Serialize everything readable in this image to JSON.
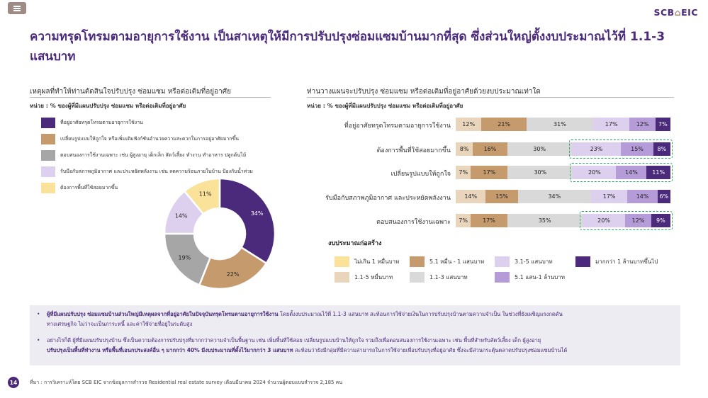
{
  "header": {
    "logo_text": "SCB",
    "logo_suffix": "EIC",
    "house_glyph": "⌂"
  },
  "title": "ความทรุดโทรมตามอายุการใช้งาน เป็นสาเหตุให้มีการปรับปรุงซ่อมแซมบ้านมากที่สุด ซึ่งส่วนใหญ่ตั้งงบประมาณไว้ที่ 1.1-3 แสนบาท",
  "left": {
    "title": "เหตุผลที่ทำให้ท่านตัดสินใจปรับปรุง ซ่อมแซม หรือต่อเติมที่อยู่อาศัย",
    "subtitle": "หน่วย : % ของผู้ที่มีแผนปรับปรุง ซ่อมแซม หรือต่อเติมที่อยู่อาศัย"
  },
  "right": {
    "title": "ท่านวางแผนจะปรับปรุง ซ่อมแซม หรือต่อเติมที่อยู่อาศัยด้วยงบประมาณเท่าใด",
    "subtitle": "หน่วย : % ของผู้ที่มีแผนปรับปรุง ซ่อมแซม หรือต่อเติมที่อยู่อาศัย",
    "legend_title": "งบประมาณก่อสร้าง"
  },
  "colors": {
    "accent": "#4b2a7c",
    "highlight_border": "#2ea46a",
    "note_bg": "#ececf2"
  },
  "chart_data": [
    {
      "type": "pie",
      "variant": "donut",
      "title": "",
      "categories": [
        "ที่อยู่อาศัยทรุดโทรมตามอายุการใช้งาน",
        "เปลี่ยนรูปแบบให้ถูกใจ หรือเพิ่มเติมฟังก์ชันอำนวยความสะดวกในการอยู่อาศัยมากขึ้น",
        "ตอบสนองการใช้งานเฉพาะ เช่น ผู้สูงอายุ เด็กเล็ก สัตว์เลี้ยง ทำงาน ทำอาหาร ปลูกต้นไม้",
        "รับมือกับสภาพภูมิอากาศ และประหยัดพลังงาน เช่น ลดความร้อนภายในบ้าน ป้องกันน้ำท่วม",
        "ต้องการพื้นที่ใช้สอยมากขึ้น"
      ],
      "values": [
        34,
        22,
        19,
        14,
        11
      ],
      "value_labels": [
        "34%",
        "22%",
        "19%",
        "14%",
        "11%"
      ],
      "colors": [
        "#4b2a7c",
        "#c59a6d",
        "#a6a6a6",
        "#ddd0ee",
        "#fbe29a"
      ],
      "legend": "left"
    },
    {
      "type": "bar",
      "orientation": "horizontal",
      "stacked": true,
      "title": "",
      "categories": [
        "ที่อยู่อาศัยทรุดโทรมตามอายุการใช้งาน",
        "ต้องการพื้นที่ใช้สอยมากขึ้น",
        "เปลี่ยนรูปแบบให้ถูกใจ",
        "รับมือกับสภาพภูมิอากาศ และประหยัดพลังงาน",
        "ตอบสนองการใช้งานเฉพาะ"
      ],
      "series": [
        {
          "name": "ไม่เกิน 1 หมื่นบาท",
          "values": [
            0,
            0,
            0,
            0,
            0
          ],
          "color": "#fbe29a"
        },
        {
          "name": "1.1-5 หมื่นบาท",
          "values": [
            12,
            8,
            7,
            14,
            7
          ],
          "color": "#e8d5bc"
        },
        {
          "name": "5.1 หมื่น - 1 แสนบาท",
          "values": [
            21,
            16,
            17,
            15,
            17
          ],
          "color": "#c59a6d"
        },
        {
          "name": "1.1-3 แสนบาท",
          "values": [
            31,
            30,
            30,
            34,
            35
          ],
          "color": "#d9d9d9"
        },
        {
          "name": "3.1-5 แสนบาท",
          "values": [
            17,
            23,
            20,
            17,
            20
          ],
          "color": "#ddd0ee"
        },
        {
          "name": "5.1 แสน-1 ล้านบาท",
          "values": [
            12,
            15,
            14,
            14,
            12
          ],
          "color": "#b59bd8"
        },
        {
          "name": "มากกว่า 1 ล้านบาทขึ้นไป",
          "values": [
            7,
            8,
            11,
            6,
            9
          ],
          "color": "#4b2a7c"
        }
      ],
      "highlighted_rows": [
        1,
        2,
        4
      ],
      "legend": "bottom"
    }
  ],
  "notes": [
    {
      "bold": "ผู้ที่มีแผนปรับปรุง ซ่อมแซมบ้านส่วนใหญ่มีเหตุผลจากที่อยู่อาศัยในปัจจุบันทรุดโทรมตามอายุการใช้งาน",
      "line1_rest": " โดยตั้งงบประมาณไว้ที่ 1.1-3 แสนบาท สะท้อนการใช้จ่ายเงินในการปรับปรุงบ้านตามความจำเป็น ในช่วงที่ยังเผชิญแรงกดดัน",
      "line2": "ทางเศรษฐกิจ ไม่ว่าจะเป็นภาระหนี้ และค่าใช้จ่ายที่อยู่ในระดับสูง"
    },
    {
      "line1": "อย่างไรก็ดี ผู้ที่มีแผนปรับปรุงบ้าน ซึ่งเป็นความต้องการปรับปรุงที่มากกว่าความจำเป็นพื้นฐาน เช่น เพิ่มพื้นที่ใช้สอย เปลี่ยนรูปแบบบ้านให้ถูกใจ รวมถึงเพื่อตอบสนองการใช้งานเฉพาะ เช่น พื้นที่สำหรับสัตว์เลี้ยง เด็ก ผู้สูงอายุ",
      "line2_bold": "ปรับปรุงเป็นพื้นที่ทำงาน หรือพื้นที่เอนกประสงค์อื่น ๆ มากกว่า 40% มีงบประมาณที่ตั้งไว้มากกว่า 3 แสนบาท",
      "line2_rest": " สะท้อนว่ายังมีกลุ่มที่มีความสามารถในการใช้จ่ายเพื่อปรับปรุงที่อยู่อาศัย ซึ่งจะมีส่วนกระตุ้นตลาดปรับปรุงซ่อมแซมบ้านได้"
    }
  ],
  "footer": {
    "page_number": "14",
    "source": "ที่มา : การวิเคราะห์โดย SCB EIC จากข้อมูลการสำรวจ Residential real estate survey เดือนมีนาคม 2024 จำนวนผู้ตอบแบบสำรวจ 2,185 คน"
  }
}
